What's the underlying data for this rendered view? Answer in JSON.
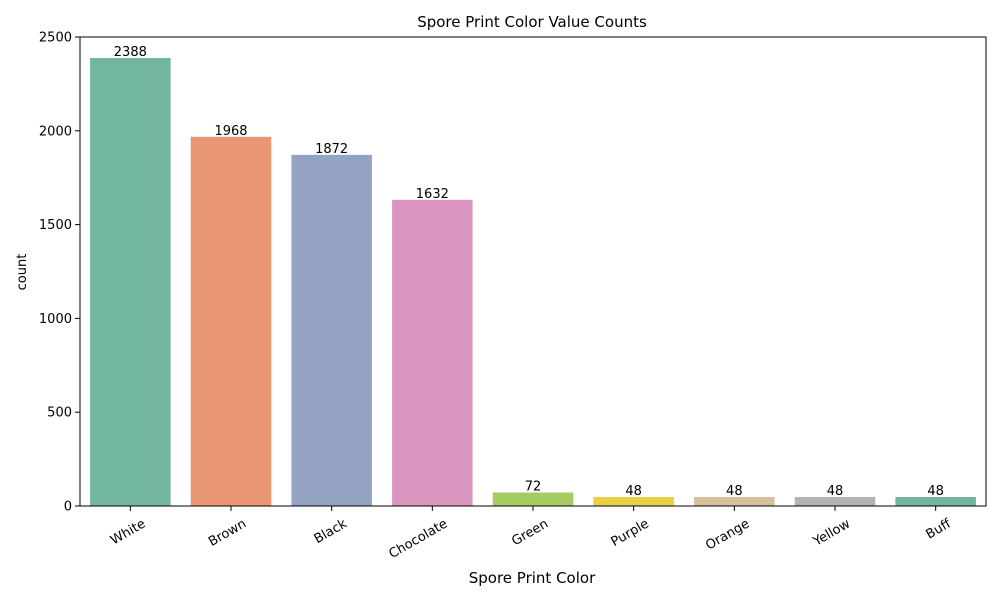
{
  "chart_data": {
    "type": "bar",
    "title": "Spore Print Color Value Counts",
    "xlabel": "Spore Print Color",
    "ylabel": "count",
    "categories": [
      "White",
      "Brown",
      "Black",
      "Chocolate",
      "Green",
      "Purple",
      "Orange",
      "Yellow",
      "Buff"
    ],
    "values": [
      2388,
      1968,
      1872,
      1632,
      72,
      48,
      48,
      48,
      48
    ],
    "data_labels": [
      "2388",
      "1968",
      "1872",
      "1632",
      "72",
      "48",
      "48",
      "48",
      "48"
    ],
    "colors": [
      "#72b6a1",
      "#e99675",
      "#95a3c3",
      "#db96c0",
      "#a6cb63",
      "#e8d046",
      "#d7c19b",
      "#b3b3b3",
      "#72b6a1"
    ],
    "ylim": [
      0,
      2500
    ],
    "yticks": [
      0,
      500,
      1000,
      1500,
      2000,
      2500
    ],
    "ytick_labels": [
      "0",
      "500",
      "1000",
      "1500",
      "2000",
      "2500"
    ],
    "grid": false,
    "legend": "none"
  }
}
